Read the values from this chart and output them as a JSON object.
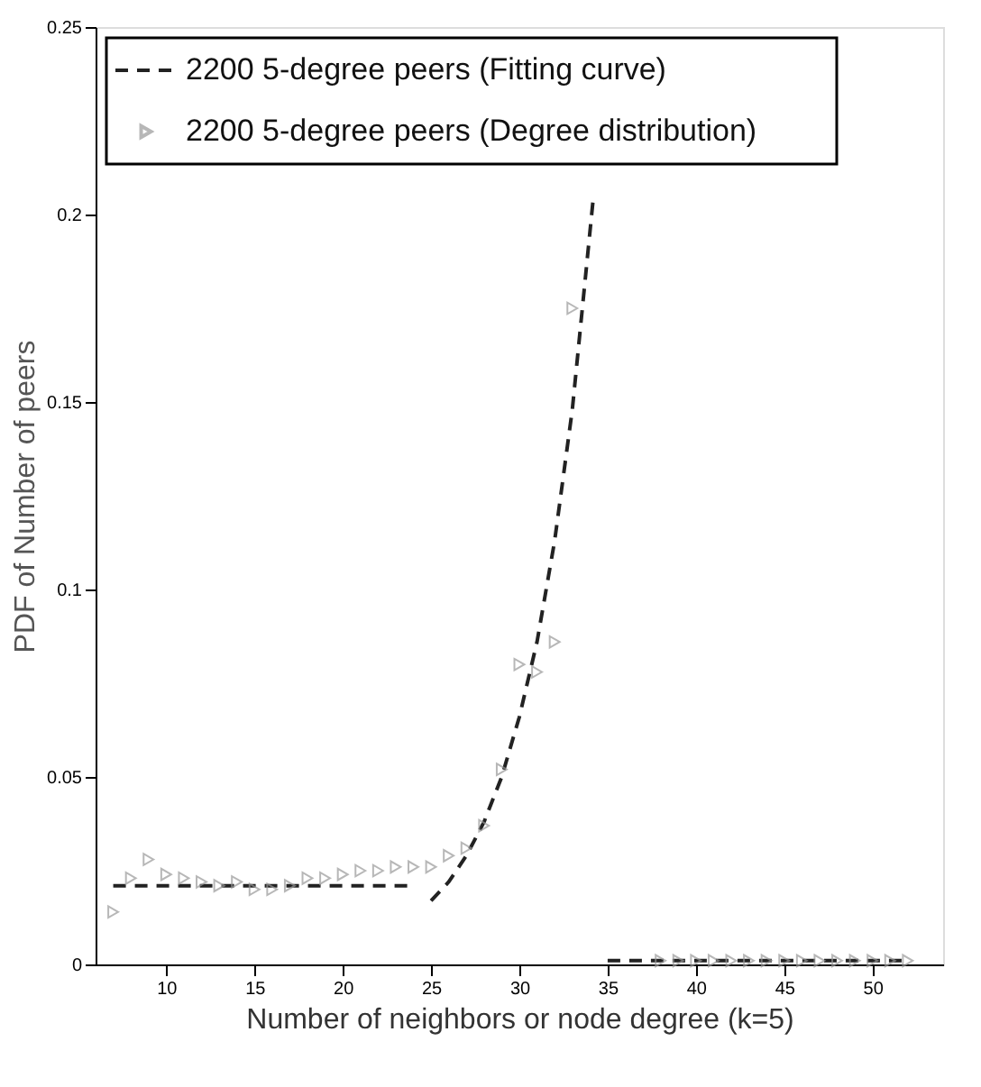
{
  "chart_data": {
    "type": "scatter",
    "xlabel": "Number of neighbors or node degree (k=5)",
    "ylabel": "PDF of Number of peers",
    "xlim": [
      6,
      54
    ],
    "xticks": [
      10,
      15,
      20,
      25,
      30,
      35,
      40,
      45,
      50
    ],
    "ylim": [
      0,
      0.25
    ],
    "yticks": [
      0,
      0.05,
      0.1,
      0.15,
      0.2,
      0.25
    ],
    "grid": false,
    "legend": "top left",
    "series": [
      {
        "name": "2200 5-degree peers (Fitting curve)",
        "type": "line",
        "line_style": "dashed",
        "marker": "none",
        "color": "#222222",
        "x": [
          7,
          24,
          24.5,
          25,
          26,
          27,
          28,
          29,
          30,
          31,
          32,
          33,
          34.2,
          34.6,
          35,
          52
        ],
        "values": [
          0.021,
          0.021,
          null,
          0.017,
          0.022,
          0.029,
          0.038,
          0.05,
          0.066,
          0.086,
          0.113,
          0.148,
          0.205,
          null,
          0.001,
          0.001
        ]
      },
      {
        "name": "2200 5-degree peers (Degree distribution)",
        "marker": "triangle",
        "color": "#999999",
        "x": [
          7,
          8,
          9,
          10,
          11,
          12,
          13,
          14,
          15,
          16,
          17,
          18,
          19,
          20,
          21,
          22,
          23,
          24,
          25,
          26,
          27,
          28,
          29,
          30,
          31,
          32,
          33,
          38,
          39,
          40,
          41,
          42,
          43,
          44,
          45,
          46,
          47,
          48,
          49,
          50,
          51,
          52
        ],
        "values": [
          0.014,
          0.023,
          0.028,
          0.024,
          0.023,
          0.022,
          0.021,
          0.022,
          0.02,
          0.02,
          0.021,
          0.023,
          0.023,
          0.024,
          0.025,
          0.025,
          0.026,
          0.026,
          0.026,
          0.029,
          0.031,
          0.037,
          0.052,
          0.08,
          0.078,
          0.086,
          0.175,
          0.001,
          0.001,
          0.001,
          0.001,
          0.001,
          0.001,
          0.001,
          0.001,
          0.001,
          0.001,
          0.001,
          0.001,
          0.001,
          0.001,
          0.001
        ]
      }
    ]
  }
}
